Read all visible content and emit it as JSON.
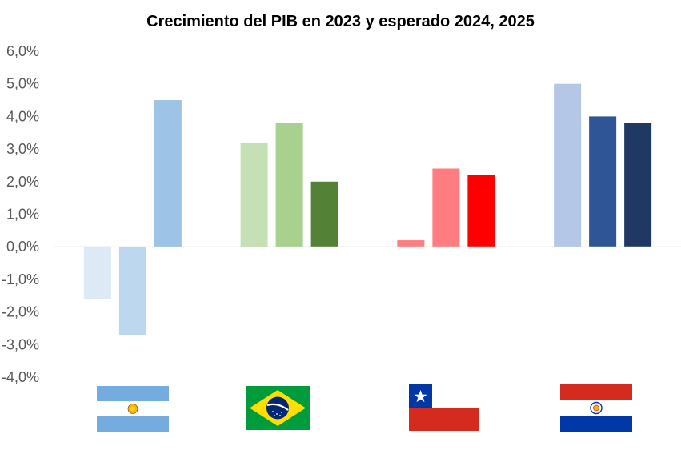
{
  "chart_data": {
    "type": "bar",
    "title": "Crecimiento del PIB en 2023 y esperado 2024, 2025",
    "xlabel": "",
    "ylabel": "",
    "ylim": [
      -4.0,
      6.0
    ],
    "y_ticks": [
      "6,0%",
      "5,0%",
      "4,0%",
      "3,0%",
      "2,0%",
      "1,0%",
      "0,0%",
      "-1,0%",
      "-2,0%",
      "-3,0%",
      "-4,0%"
    ],
    "y_tick_values": [
      6,
      5,
      4,
      3,
      2,
      1,
      0,
      -1,
      -2,
      -3,
      -4
    ],
    "grid": false,
    "legend": "none",
    "categories": [
      "Argentina",
      "Brasil",
      "Chile",
      "Paraguay"
    ],
    "category_markers": [
      "argentina-flag",
      "brazil-flag",
      "chile-flag",
      "paraguay-flag"
    ],
    "series": [
      {
        "values": [
          -1.6,
          3.2,
          0.2,
          5.0
        ]
      },
      {
        "values": [
          -2.7,
          3.8,
          2.4,
          4.0
        ]
      },
      {
        "values": [
          4.5,
          2.0,
          2.2,
          3.8
        ]
      }
    ],
    "colors": [
      [
        "#dde9f5",
        "#bdd7ee",
        "#9dc3e6"
      ],
      [
        "#c5e0b4",
        "#a9d18e",
        "#538135"
      ],
      [
        "#ff7c80",
        "#ff7c80",
        "#ff0000"
      ],
      [
        "#b4c7e7",
        "#2f5597",
        "#203864"
      ]
    ]
  }
}
